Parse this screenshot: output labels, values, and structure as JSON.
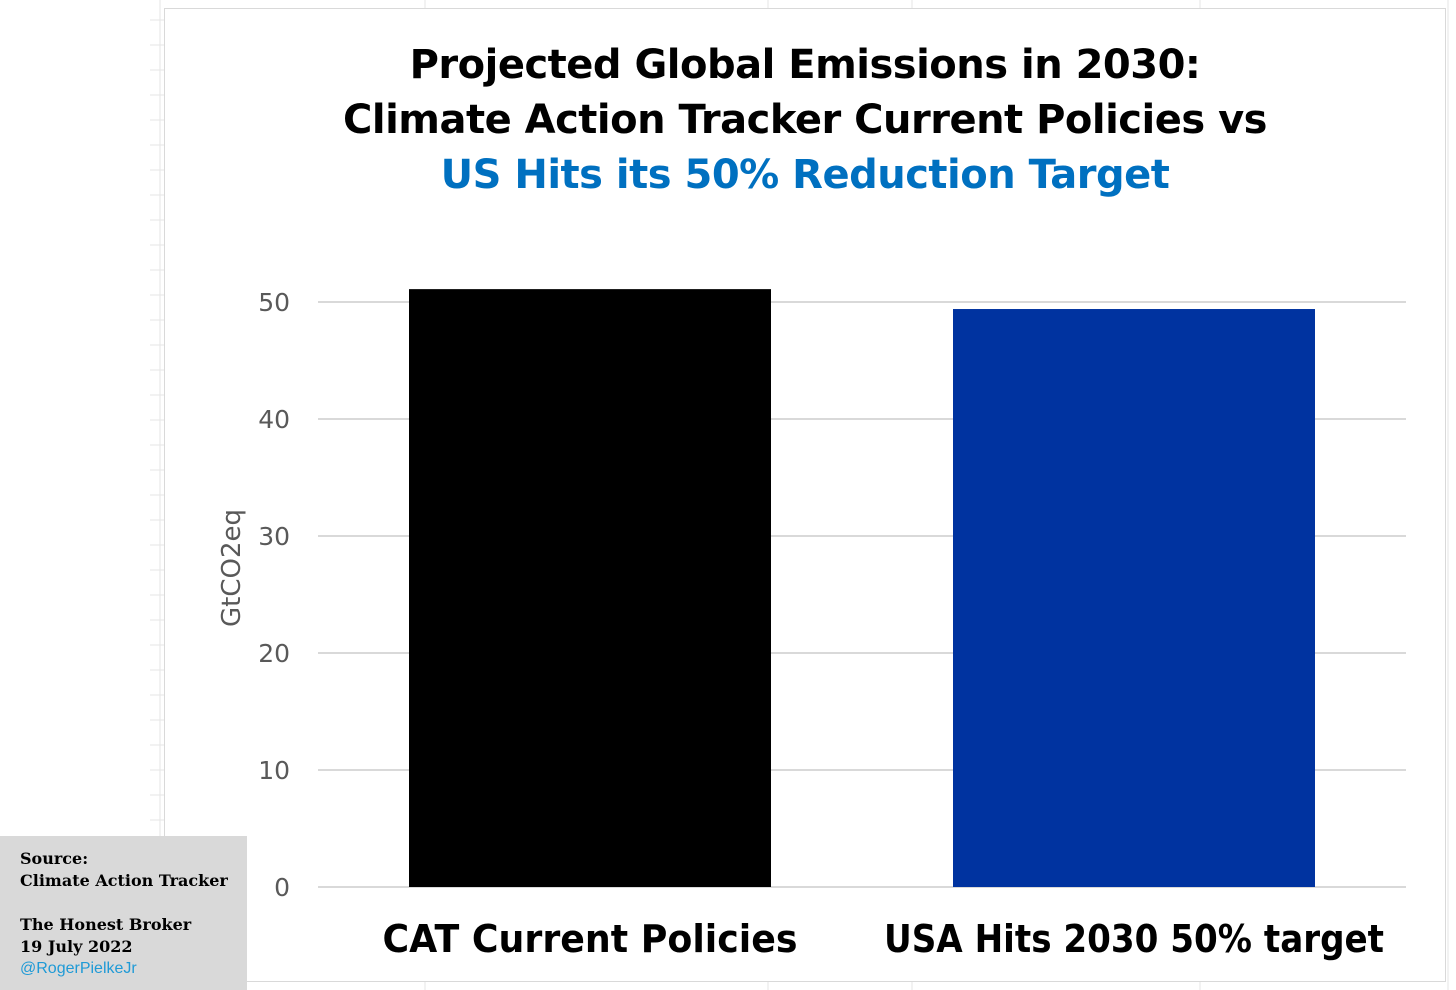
{
  "chart_data": {
    "type": "bar",
    "title_lines": [
      "Projected Global Emissions in 2030:",
      "Climate Action Tracker Current Policies vs",
      "US Hits its 50% Reduction Target"
    ],
    "title_colors": [
      "#000000",
      "#000000",
      "#0070c0"
    ],
    "categories": [
      "CAT Current Policies",
      "USA Hits 2030 50% target"
    ],
    "values": [
      51.1,
      49.4
    ],
    "bar_colors": [
      "#000000",
      "#0033a0"
    ],
    "ylabel": "GtCO2eq",
    "xlabel": "",
    "ylim": [
      0,
      50
    ],
    "yticks": [
      0,
      10,
      20,
      30,
      40,
      50
    ],
    "grid": true
  },
  "source_box": {
    "source_label": "Source:",
    "source_name": "Climate Action Tracker",
    "publication": "The Honest Broker",
    "date": "19 July 2022",
    "handle": "@RogerPielkeJr"
  },
  "colors": {
    "gridline": "#d9d9d9",
    "tick_text": "#595959",
    "source_box_bg": "#d9d9d9",
    "handle": "#1f9ad6"
  }
}
